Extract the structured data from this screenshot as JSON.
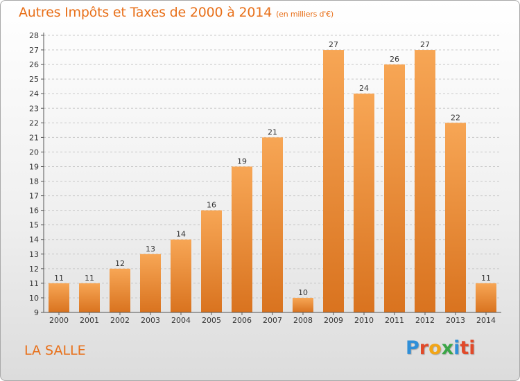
{
  "header": {
    "title": "Autres Impôts et Taxes de 2000 à 2014",
    "subtitle": "(en milliers d'€)"
  },
  "footer": {
    "town": "LA SALLE",
    "logo": {
      "letters": [
        "P",
        "r",
        "o",
        "x",
        "i",
        "ti"
      ]
    }
  },
  "colors": {
    "title": "#e8701a",
    "bar_light": "#f7a655",
    "bar_dark": "#d9731f",
    "grid": "#c8c8c8"
  },
  "chart_data": {
    "type": "bar",
    "categories": [
      "2000",
      "2001",
      "2002",
      "2003",
      "2004",
      "2005",
      "2006",
      "2007",
      "2008",
      "2009",
      "2010",
      "2011",
      "2012",
      "2013",
      "2014"
    ],
    "values": [
      11,
      11,
      12,
      13,
      14,
      16,
      19,
      21,
      10,
      27,
      24,
      26,
      27,
      22,
      11
    ],
    "data_labels": [
      "11",
      "11",
      "12",
      "13",
      "14",
      "16",
      "19",
      "21",
      "10",
      "27",
      "24",
      "26",
      "27",
      "22",
      "11"
    ],
    "title": "Autres Impôts et Taxes de 2000 à 2014",
    "subtitle": "(en milliers d'€)",
    "xlabel": "",
    "ylabel": "",
    "ylim": [
      9,
      28
    ],
    "yticks": [
      "9",
      "10",
      "11",
      "12",
      "13",
      "14",
      "15",
      "16",
      "17",
      "18",
      "19",
      "20",
      "21",
      "22",
      "23",
      "24",
      "25",
      "26",
      "27",
      "28"
    ],
    "grid": true,
    "legend": "none"
  }
}
